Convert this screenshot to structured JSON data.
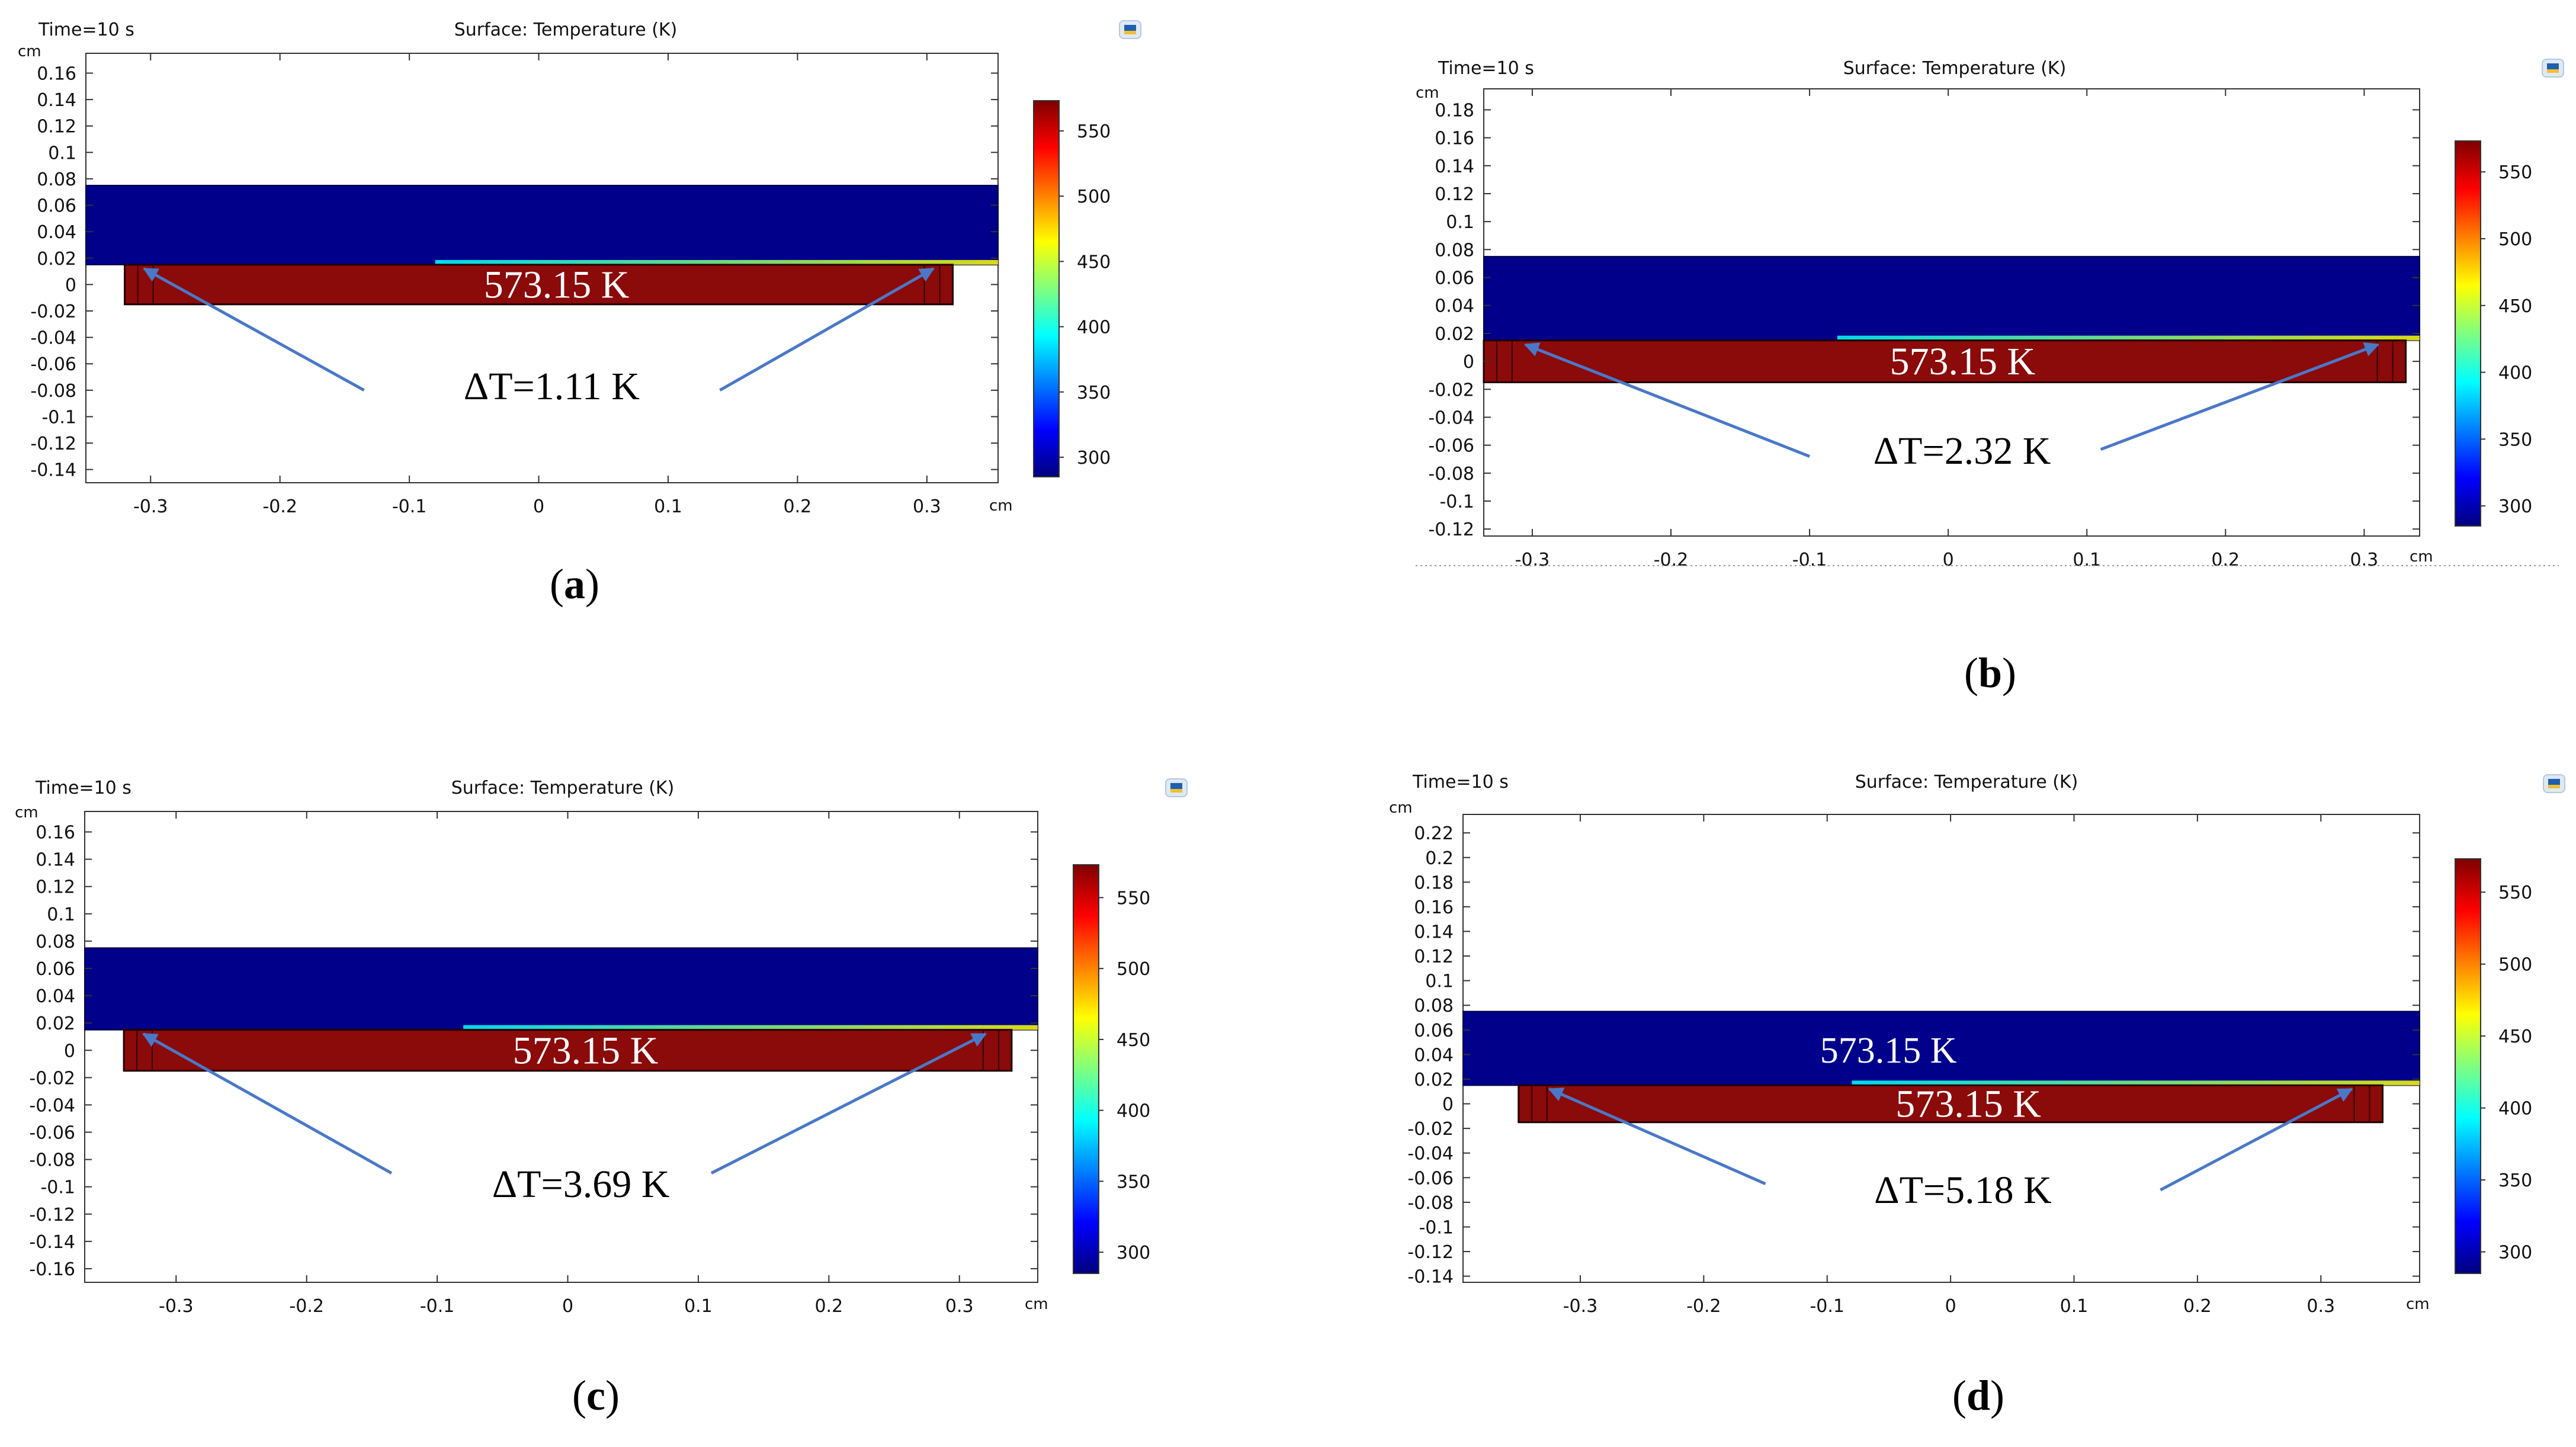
{
  "figure": {
    "colors": {
      "blue_domain": "#00008b",
      "red_domain": "#8b0a0a",
      "arrow": "#4a78c8",
      "axis": "#333333",
      "text": "#111111"
    },
    "colorbar": {
      "stops": [
        "#00007f",
        "#0000ff",
        "#007fff",
        "#00ffff",
        "#7fff7f",
        "#ffff00",
        "#ff7f00",
        "#ff0000",
        "#7f0000"
      ],
      "min": 285,
      "max": 573.15
    }
  },
  "chart_data": [
    {
      "panel_label": "(a)",
      "panel_letter": "a",
      "time_label": "Time=10 s",
      "title": "Surface: Temperature (K)",
      "type": "heatmap",
      "x_unit": "cm",
      "y_unit": "cm",
      "xlim": [
        -0.35,
        0.355
      ],
      "ylim": [
        -0.15,
        0.175
      ],
      "xticks": [
        -0.3,
        -0.2,
        -0.1,
        0,
        0.1,
        0.2,
        0.3
      ],
      "xtick_labels": [
        "-0.3",
        "-0.2",
        "-0.1",
        "0",
        "0.1",
        "0.2",
        "0.3"
      ],
      "yticks": [
        0.16,
        0.14,
        0.12,
        0.1,
        0.08,
        0.06,
        0.04,
        0.02,
        0,
        -0.02,
        -0.04,
        -0.06,
        -0.08,
        -0.1,
        -0.12,
        -0.14
      ],
      "ytick_labels": [
        "0.16",
        "0.14",
        "0.12",
        "0.1",
        "0.08",
        "0.06",
        "0.04",
        "0.02",
        "0",
        "-0.02",
        "-0.04",
        "-0.06",
        "-0.08",
        "-0.1",
        "-0.12",
        "-0.14"
      ],
      "colorbar_ticks": [
        550,
        500,
        450,
        400,
        350,
        300
      ],
      "upper_domain": {
        "x": [
          -0.35,
          0.355
        ],
        "y": [
          0.015,
          0.075
        ]
      },
      "lower_domain": {
        "x": [
          -0.32,
          0.32
        ],
        "y": [
          -0.015,
          0.015
        ]
      },
      "label_lower": "573.15 K",
      "label_upper": "",
      "delta_label": "ΔT=1.11 K",
      "arrow_tips": [
        [
          -0.305,
          0.012
        ],
        [
          0.305,
          0.012
        ]
      ],
      "arrow_tails": [
        [
          -0.135,
          -0.08
        ],
        [
          0.14,
          -0.08
        ]
      ],
      "delta_pos": [
        0.01,
        -0.077
      ]
    },
    {
      "panel_label": "(b)",
      "panel_letter": "b",
      "time_label": "Time=10 s",
      "title": "Surface: Temperature (K)",
      "type": "heatmap",
      "x_unit": "cm",
      "y_unit": "cm",
      "xlim": [
        -0.335,
        0.34
      ],
      "ylim": [
        -0.125,
        0.195
      ],
      "xticks": [
        -0.3,
        -0.2,
        -0.1,
        0,
        0.1,
        0.2,
        0.3
      ],
      "xtick_labels": [
        "-0.3",
        "-0.2",
        "-0.1",
        "0",
        "0.1",
        "0.2",
        "0.3"
      ],
      "yticks": [
        0.18,
        0.16,
        0.14,
        0.12,
        0.1,
        0.08,
        0.06,
        0.04,
        0.02,
        0,
        -0.02,
        -0.04,
        -0.06,
        -0.08,
        -0.1,
        -0.12
      ],
      "ytick_labels": [
        "0.18",
        "0.16",
        "0.14",
        "0.12",
        "0.1",
        "0.08",
        "0.06",
        "0.04",
        "0.02",
        "0",
        "-0.02",
        "-0.04",
        "-0.06",
        "-0.08",
        "-0.1",
        "-0.12"
      ],
      "colorbar_ticks": [
        550,
        500,
        450,
        400,
        350,
        300
      ],
      "upper_domain": {
        "x": [
          -0.335,
          0.34
        ],
        "y": [
          0.015,
          0.075
        ]
      },
      "lower_domain": {
        "x": [
          -0.335,
          0.33
        ],
        "y": [
          -0.015,
          0.015
        ]
      },
      "label_lower": "573.15 K",
      "label_upper": "",
      "delta_label": "ΔT=2.32 K",
      "arrow_tips": [
        [
          -0.305,
          0.012
        ],
        [
          0.31,
          0.012
        ]
      ],
      "arrow_tails": [
        [
          -0.1,
          -0.068
        ],
        [
          0.11,
          -0.063
        ]
      ],
      "delta_pos": [
        0.01,
        -0.064
      ]
    },
    {
      "panel_label": "(c)",
      "panel_letter": "c",
      "time_label": "Time=10 s",
      "title": "Surface: Temperature (K)",
      "type": "heatmap",
      "x_unit": "cm",
      "y_unit": "cm",
      "xlim": [
        -0.37,
        0.36
      ],
      "ylim": [
        -0.17,
        0.175
      ],
      "xticks": [
        -0.3,
        -0.2,
        -0.1,
        0,
        0.1,
        0.2,
        0.3
      ],
      "xtick_labels": [
        "-0.3",
        "-0.2",
        "-0.1",
        "0",
        "0.1",
        "0.2",
        "0.3"
      ],
      "yticks": [
        0.16,
        0.14,
        0.12,
        0.1,
        0.08,
        0.06,
        0.04,
        0.02,
        0,
        -0.02,
        -0.04,
        -0.06,
        -0.08,
        -0.1,
        -0.12,
        -0.14,
        -0.16
      ],
      "ytick_labels": [
        "0.16",
        "0.14",
        "0.12",
        "0.1",
        "0.08",
        "0.06",
        "0.04",
        "0.02",
        "0",
        "-0.02",
        "-0.04",
        "-0.06",
        "-0.08",
        "-0.1",
        "-0.12",
        "-0.14",
        "-0.16"
      ],
      "colorbar_ticks": [
        550,
        500,
        450,
        400,
        350,
        300
      ],
      "upper_domain": {
        "x": [
          -0.37,
          0.36
        ],
        "y": [
          0.015,
          0.075
        ]
      },
      "lower_domain": {
        "x": [
          -0.34,
          0.34
        ],
        "y": [
          -0.015,
          0.015
        ]
      },
      "label_lower": "573.15 K",
      "label_upper": "",
      "delta_label": "ΔT=3.69 K",
      "arrow_tips": [
        [
          -0.325,
          0.012
        ],
        [
          0.32,
          0.012
        ]
      ],
      "arrow_tails": [
        [
          -0.135,
          -0.09
        ],
        [
          0.11,
          -0.09
        ]
      ],
      "delta_pos": [
        0.01,
        -0.098
      ]
    },
    {
      "panel_label": "(d)",
      "panel_letter": "d",
      "time_label": "Time=10 s",
      "title": "Surface: Temperature (K)",
      "type": "heatmap",
      "x_unit": "cm",
      "y_unit": "cm",
      "xlim": [
        -0.395,
        0.38
      ],
      "ylim": [
        -0.145,
        0.235
      ],
      "xticks": [
        -0.3,
        -0.2,
        -0.1,
        0,
        0.1,
        0.2,
        0.3
      ],
      "xtick_labels": [
        "-0.3",
        "-0.2",
        "-0.1",
        "0",
        "0.1",
        "0.2",
        "0.3"
      ],
      "yticks": [
        0.22,
        0.2,
        0.18,
        0.16,
        0.14,
        0.12,
        0.1,
        0.08,
        0.06,
        0.04,
        0.02,
        0,
        -0.02,
        -0.04,
        -0.06,
        -0.08,
        -0.1,
        -0.12,
        -0.14
      ],
      "ytick_labels": [
        "0.22",
        "0.2",
        "0.18",
        "0.16",
        "0.14",
        "0.12",
        "0.1",
        "0.08",
        "0.06",
        "0.04",
        "0.02",
        "0",
        "-0.02",
        "-0.04",
        "-0.06",
        "-0.08",
        "-0.1",
        "-0.12",
        "-0.14"
      ],
      "colorbar_ticks": [
        550,
        500,
        450,
        400,
        350,
        300
      ],
      "upper_domain": {
        "x": [
          -0.395,
          0.38
        ],
        "y": [
          0.015,
          0.075
        ]
      },
      "lower_domain": {
        "x": [
          -0.35,
          0.35
        ],
        "y": [
          -0.015,
          0.015
        ]
      },
      "label_lower": "573.15 K",
      "label_upper": "573.15 K",
      "delta_label": "ΔT=5.18 K",
      "arrow_tips": [
        [
          -0.325,
          0.012
        ],
        [
          0.325,
          0.012
        ]
      ],
      "arrow_tails": [
        [
          -0.15,
          -0.065
        ],
        [
          0.17,
          -0.07
        ]
      ],
      "delta_pos": [
        0.01,
        -0.07
      ]
    }
  ]
}
